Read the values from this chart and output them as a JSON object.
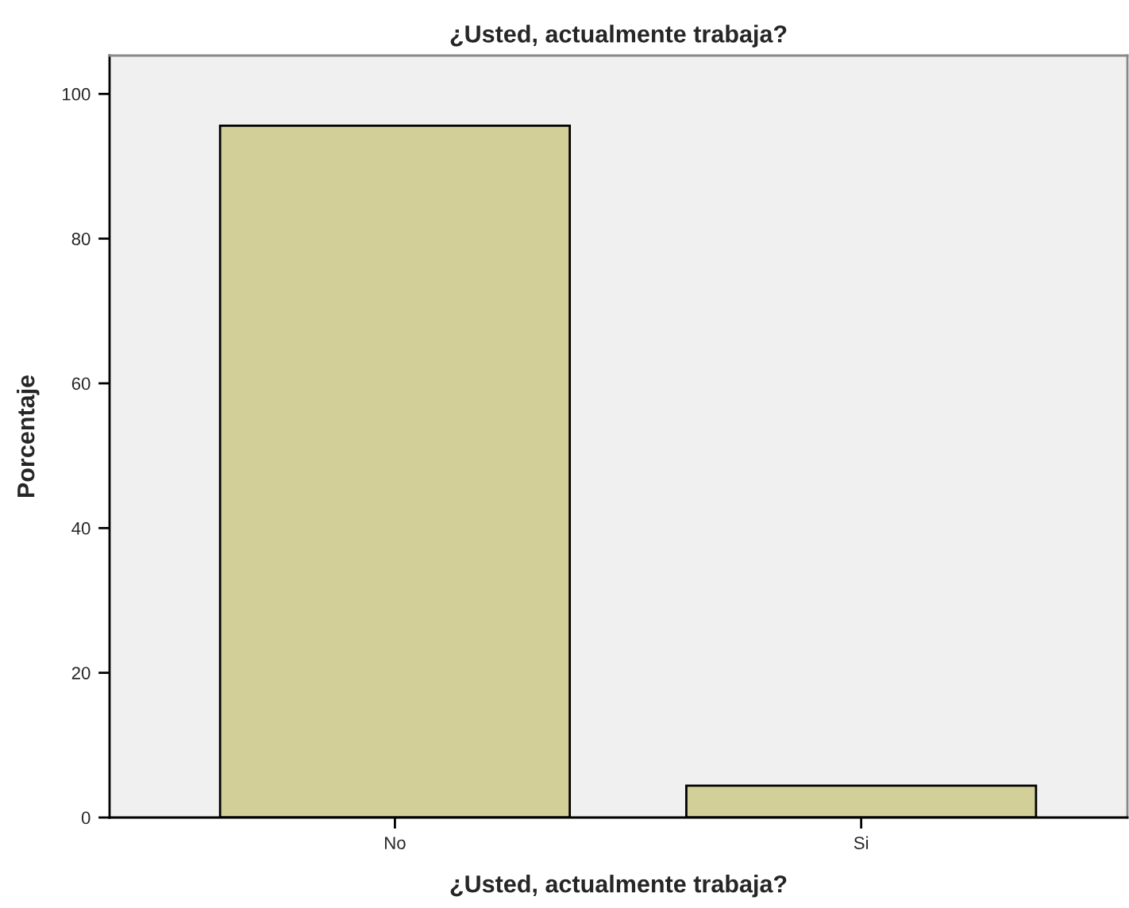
{
  "chart_data": {
    "type": "bar",
    "title": "¿Usted, actualmente trabaja?",
    "xlabel": "¿Usted, actualmente trabaja?",
    "ylabel": "Porcentaje",
    "categories": [
      "No",
      "Si"
    ],
    "values": [
      95.6,
      4.4
    ],
    "color": "#d3cf98",
    "ylim": [
      0,
      105.3
    ],
    "yticks": [
      0,
      20,
      40,
      60,
      80,
      100
    ],
    "grid": false,
    "legend": false
  }
}
